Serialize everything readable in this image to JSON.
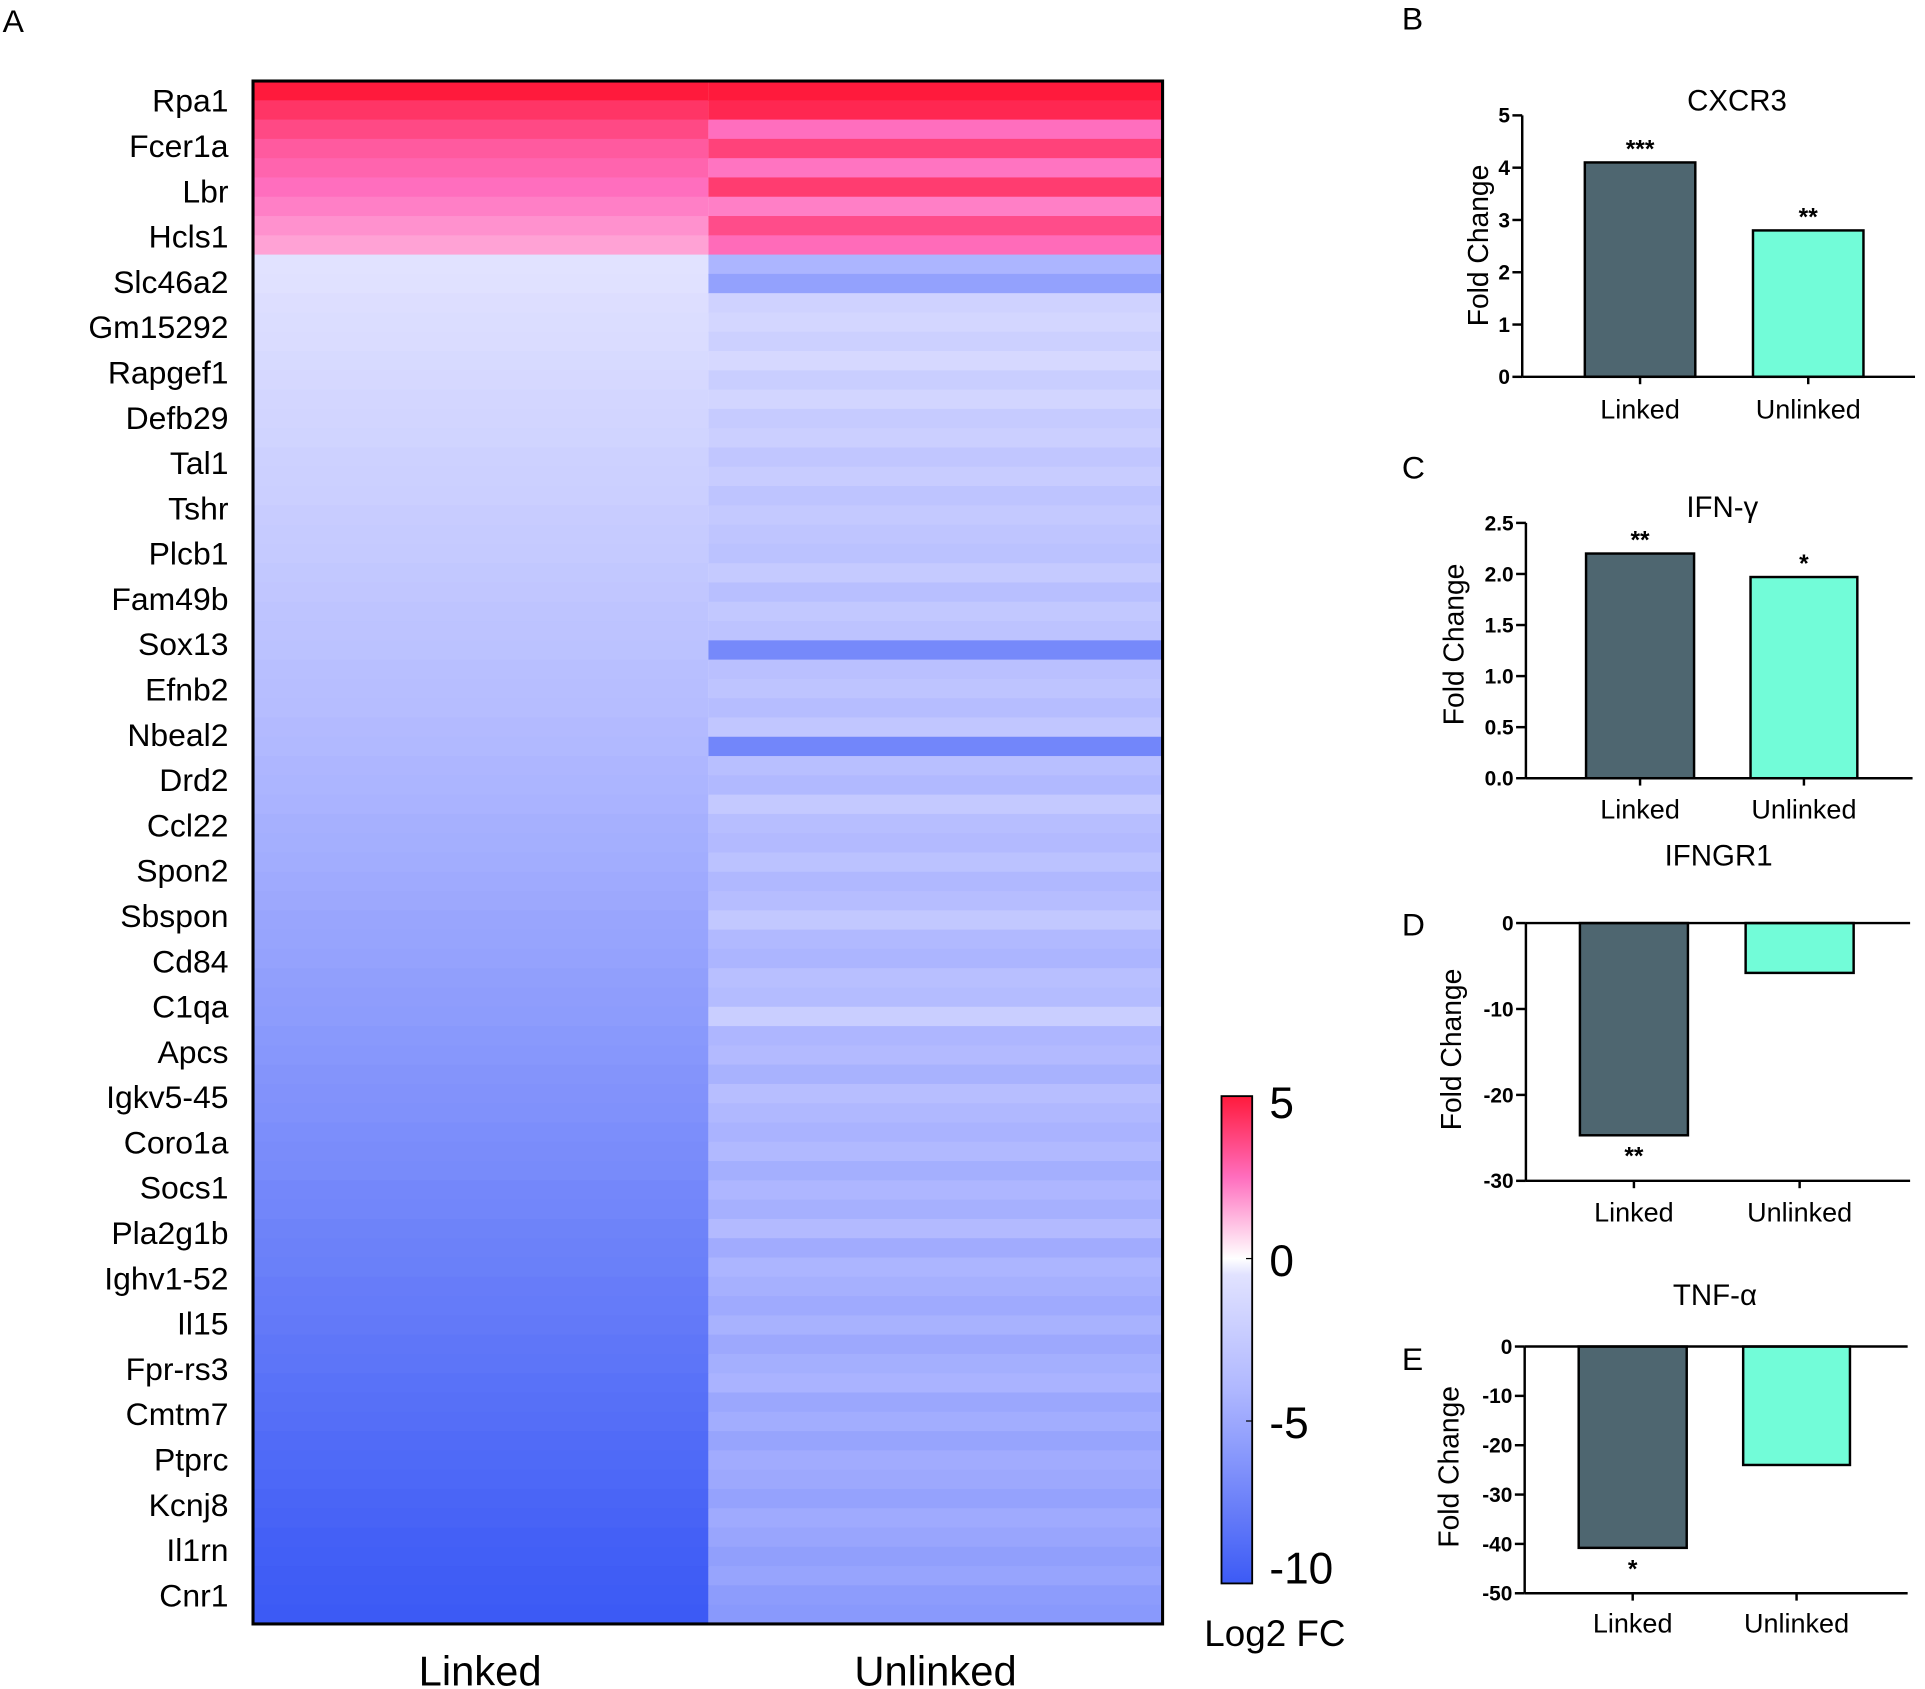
{
  "panel_labels": [
    "A",
    "B",
    "C",
    "D",
    "E"
  ],
  "chart_data": [
    {
      "type": "heatmap",
      "columns": [
        "Linked",
        "Unlinked"
      ],
      "gene_labels": [
        "Rpa1",
        "Fcer1a",
        "Lbr",
        "Hcls1",
        "Slc46a2",
        "Gm15292",
        "Rapgef1",
        "Defb29",
        "Tal1",
        "Tshr",
        "Plcb1",
        "Fam49b",
        "Sox13",
        "Efnb2",
        "Nbeal2",
        "Drd2",
        "Ccl22",
        "Spon2",
        "Sbspon",
        "Cd84",
        "C1qa",
        "Apcs",
        "Igkv5-45",
        "Coro1a",
        "Socs1",
        "Pla2g1b",
        "Ighv1-52",
        "Il15",
        "Fpr-rs3",
        "Cmtm7",
        "Ptprc",
        "Kcnj8",
        "Il1rn",
        "Cnr1"
      ],
      "values": {
        "Linked": [
          5,
          4.2,
          3.6,
          3.1,
          2.8,
          2.5,
          2.2,
          1.9,
          1.6,
          -0.5,
          -0.6,
          -0.8,
          -0.9,
          -1.0,
          -1.2,
          -1.3,
          -1.5,
          -1.6,
          -1.7,
          -1.9,
          -2.0,
          -2.1,
          -2.3,
          -2.4,
          -2.5,
          -2.7,
          -2.8,
          -3.0,
          -3.1,
          -3.2,
          -3.4,
          -3.5,
          -3.6,
          -3.8,
          -3.9,
          -4.1,
          -4.2,
          -4.3,
          -4.5,
          -4.6,
          -4.7,
          -4.9,
          -5.0,
          -5.2,
          -5.3,
          -5.4,
          -5.6,
          -5.7,
          -5.8,
          -6.0,
          -6.1,
          -6.3,
          -6.4,
          -6.5,
          -6.7,
          -6.8,
          -6.9,
          -7.1,
          -7.2,
          -7.4,
          -7.5,
          -7.6,
          -7.8,
          -7.9,
          -8.0,
          -8.2,
          -8.3,
          -8.5,
          -8.6,
          -8.7,
          -8.9,
          -9.0,
          -9.1,
          -9.3,
          -9.4,
          -9.6,
          -9.7,
          -9.8,
          -9.9,
          -10
        ],
        "Unlinked": [
          5,
          4.6,
          2.5,
          3.8,
          2.4,
          4,
          2.2,
          3.5,
          2.6,
          -4.2,
          -5.5,
          -1.8,
          -1.5,
          -2.0,
          -1.3,
          -2.2,
          -1.6,
          -2.4,
          -2.1,
          -2.8,
          -2.3,
          -3.0,
          -2.6,
          -2.9,
          -3.2,
          -2.5,
          -3.4,
          -2.7,
          -3.1,
          -7.0,
          -3.3,
          -3.0,
          -3.6,
          -2.8,
          -7.2,
          -3.4,
          -3.9,
          -2.6,
          -3.5,
          -3.8,
          -3.2,
          -4.0,
          -3.6,
          -2.7,
          -3.9,
          -4.2,
          -3.4,
          -3.7,
          -2.2,
          -4.1,
          -3.8,
          -4.4,
          -3.5,
          -4.0,
          -4.3,
          -3.9,
          -4.6,
          -4.1,
          -4.5,
          -3.8,
          -4.8,
          -4.2,
          -4.5,
          -4.9,
          -4.4,
          -5.0,
          -4.6,
          -4.3,
          -5.1,
          -4.7,
          -5.3,
          -4.8,
          -5.0,
          -5.4,
          -4.9,
          -5.2,
          -5.6,
          -5.3,
          -5.8,
          -6.0
        ]
      },
      "colorbar": {
        "label": "Log2 FC",
        "ticks": [
          "5",
          "0",
          "-5",
          "-10"
        ],
        "range": [
          -10,
          5
        ],
        "colors": {
          "low": "#3c5af5",
          "mid": "#ffffff",
          "high": "#ff1a3c"
        }
      }
    },
    {
      "type": "bar",
      "title": "CXCR3",
      "ylabel": "Fold Change",
      "categories": [
        "Linked",
        "Unlinked"
      ],
      "values": [
        4.1,
        2.8
      ],
      "significance": [
        "***",
        "**"
      ],
      "ylim": [
        0,
        5
      ],
      "yticks": [
        "0",
        "1",
        "2",
        "3",
        "4",
        "5"
      ]
    },
    {
      "type": "bar",
      "title": "IFN-γ",
      "ylabel": "Fold Change",
      "categories": [
        "Linked",
        "Unlinked"
      ],
      "values": [
        2.2,
        1.97
      ],
      "significance": [
        "**",
        "*"
      ],
      "ylim": [
        0,
        2.5
      ],
      "yticks": [
        "0.0",
        "0.5",
        "1.0",
        "1.5",
        "2.0",
        "2.5"
      ]
    },
    {
      "type": "bar",
      "title": "IFNGR1",
      "ylabel": "Fold Change",
      "categories": [
        "Linked",
        "Unlinked"
      ],
      "values": [
        -24.7,
        -5.8
      ],
      "significance": [
        "**",
        ""
      ],
      "ylim": [
        -30,
        0
      ],
      "yticks": [
        "-30",
        "-20",
        "-10",
        "0"
      ]
    },
    {
      "type": "bar",
      "title": "TNF-α",
      "ylabel": "Fold Change",
      "categories": [
        "Linked",
        "Unlinked"
      ],
      "values": [
        -40.8,
        -24
      ],
      "significance": [
        "*",
        ""
      ],
      "ylim": [
        -50,
        0
      ],
      "yticks": [
        "-50",
        "-40",
        "-30",
        "-20",
        "-10",
        "0"
      ]
    }
  ],
  "colors": {
    "linked_bar": "#4e6670",
    "unlinked_bar": "#72fcd8"
  }
}
